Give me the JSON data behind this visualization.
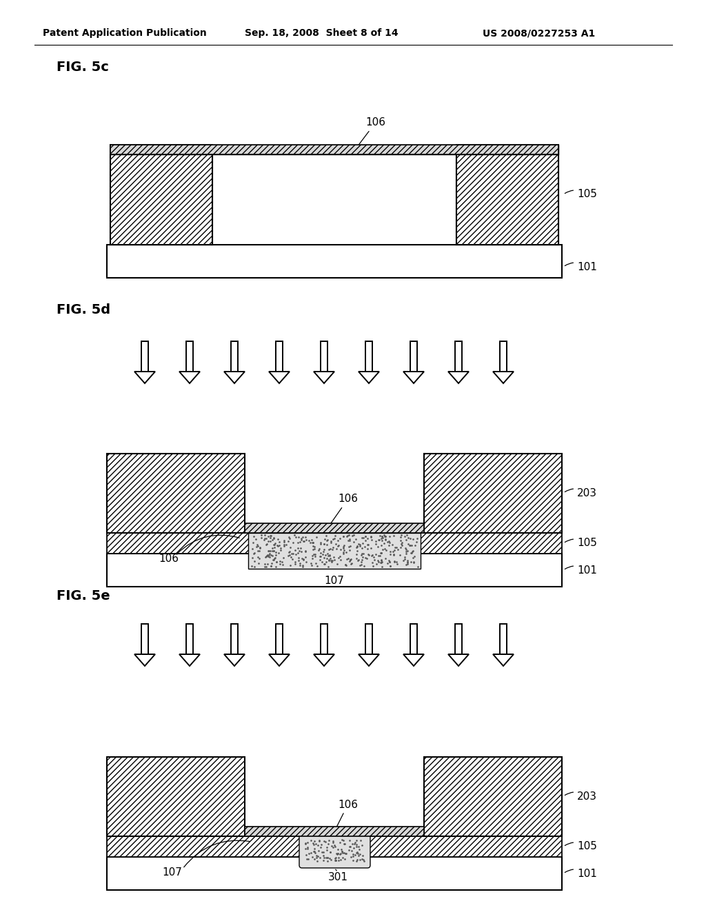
{
  "bg_color": "#ffffff",
  "header_left": "Patent Application Publication",
  "header_mid": "Sep. 18, 2008  Sheet 8 of 14",
  "header_right": "US 2008/0227253 A1",
  "fig5c_label": "FIG. 5c",
  "fig5d_label": "FIG. 5d",
  "fig5e_label": "FIG. 5e",
  "label_101": "101",
  "label_105": "105",
  "label_106": "106",
  "label_107": "107",
  "label_203": "203",
  "label_301": "301",
  "hatch": "////",
  "ec": "#000000",
  "fc": "#ffffff",
  "stipple_color": "#aaaaaa"
}
